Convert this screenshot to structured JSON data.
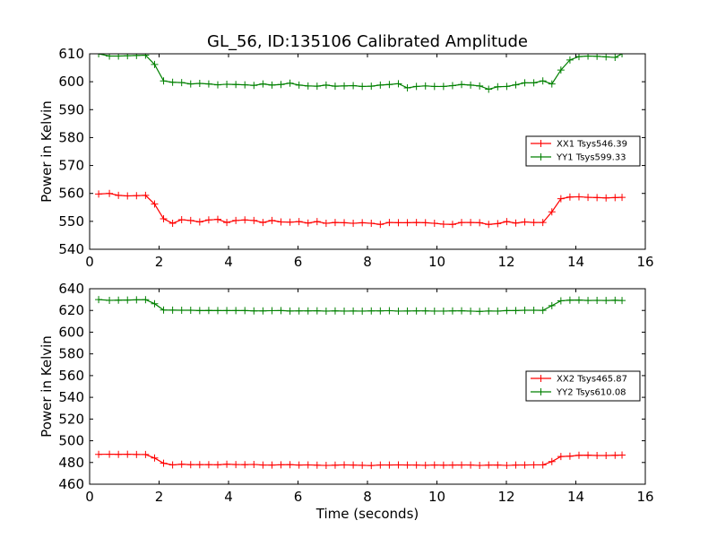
{
  "figure": {
    "title": "GL_56, ID:135106 Calibrated Amplitude",
    "xlabel": "Time (seconds)"
  },
  "chart_data": [
    {
      "type": "line",
      "title": "GL_56, ID:135106 Calibrated Amplitude",
      "xlabel": "",
      "ylabel": "Power in Kelvin",
      "xlim": [
        0,
        16
      ],
      "ylim": [
        540,
        610
      ],
      "xticks": [
        0,
        2,
        4,
        6,
        8,
        10,
        12,
        14,
        16
      ],
      "yticks": [
        540,
        550,
        560,
        570,
        580,
        590,
        600,
        610
      ],
      "grid": false,
      "legend_position": "center-right",
      "x": [
        0.26,
        0.57,
        0.83,
        1.09,
        1.35,
        1.61,
        1.87,
        2.13,
        2.39,
        2.65,
        2.91,
        3.17,
        3.43,
        3.69,
        3.95,
        4.21,
        4.47,
        4.73,
        4.99,
        5.25,
        5.51,
        5.77,
        6.03,
        6.29,
        6.55,
        6.81,
        7.07,
        7.33,
        7.59,
        7.85,
        8.11,
        8.37,
        8.63,
        8.89,
        9.15,
        9.41,
        9.67,
        9.93,
        10.19,
        10.45,
        10.71,
        10.97,
        11.23,
        11.49,
        11.75,
        12.01,
        12.27,
        12.53,
        12.79,
        13.05,
        13.31,
        13.57,
        13.83,
        14.09,
        14.35,
        14.61,
        14.87,
        15.13,
        15.33
      ],
      "series": [
        {
          "name": "XX1 Tsys546.39",
          "color": "#ff0000",
          "values": [
            559.8,
            560.0,
            559.3,
            559.1,
            559.2,
            559.3,
            556.2,
            550.9,
            549.3,
            550.6,
            550.3,
            549.8,
            550.5,
            550.7,
            549.6,
            550.3,
            550.5,
            550.3,
            549.6,
            550.3,
            549.8,
            549.7,
            549.9,
            549.4,
            549.9,
            549.3,
            549.6,
            549.5,
            549.3,
            549.5,
            549.3,
            548.9,
            549.6,
            549.5,
            549.5,
            549.6,
            549.5,
            549.3,
            549.0,
            548.9,
            549.6,
            549.6,
            549.5,
            548.9,
            549.2,
            549.9,
            549.4,
            549.8,
            549.6,
            549.6,
            553.4,
            558.1,
            558.7,
            558.8,
            558.6,
            558.5,
            558.4,
            558.5,
            558.6
          ]
        },
        {
          "name": "YY1 Tsys599.33",
          "color": "#008000",
          "values": [
            610.0,
            609.2,
            609.2,
            609.3,
            609.4,
            609.5,
            606.2,
            600.3,
            599.8,
            599.7,
            599.2,
            599.4,
            599.2,
            598.9,
            599.1,
            599.0,
            598.9,
            598.7,
            599.2,
            598.8,
            599.0,
            599.5,
            598.8,
            598.5,
            598.4,
            598.8,
            598.4,
            598.5,
            598.6,
            598.3,
            598.4,
            598.8,
            599.0,
            599.3,
            597.8,
            598.3,
            598.5,
            598.3,
            598.3,
            598.6,
            599.0,
            598.8,
            598.5,
            597.3,
            598.2,
            598.3,
            598.9,
            599.6,
            599.6,
            600.3,
            599.2,
            604.2,
            607.8,
            609.0,
            609.2,
            609.1,
            608.9,
            608.7,
            610.0
          ]
        }
      ]
    },
    {
      "type": "line",
      "title": "",
      "xlabel": "Time (seconds)",
      "ylabel": "Power in Kelvin",
      "xlim": [
        0,
        16
      ],
      "ylim": [
        460,
        640
      ],
      "xticks": [
        0,
        2,
        4,
        6,
        8,
        10,
        12,
        14,
        16
      ],
      "yticks": [
        460,
        480,
        500,
        520,
        540,
        560,
        580,
        600,
        620,
        640
      ],
      "grid": false,
      "legend_position": "center-right",
      "x": [
        0.26,
        0.57,
        0.83,
        1.09,
        1.35,
        1.61,
        1.87,
        2.13,
        2.39,
        2.65,
        2.91,
        3.17,
        3.43,
        3.69,
        3.95,
        4.21,
        4.47,
        4.73,
        4.99,
        5.25,
        5.51,
        5.77,
        6.03,
        6.29,
        6.55,
        6.81,
        7.07,
        7.33,
        7.59,
        7.85,
        8.11,
        8.37,
        8.63,
        8.89,
        9.15,
        9.41,
        9.67,
        9.93,
        10.19,
        10.45,
        10.71,
        10.97,
        11.23,
        11.49,
        11.75,
        12.01,
        12.27,
        12.53,
        12.79,
        13.05,
        13.31,
        13.57,
        13.83,
        14.09,
        14.35,
        14.61,
        14.87,
        15.13,
        15.33
      ],
      "series": [
        {
          "name": "XX2 Tsys465.87",
          "color": "#ff0000",
          "values": [
            487.5,
            487.6,
            487.5,
            487.6,
            487.4,
            487.3,
            484.1,
            479.3,
            477.8,
            478.4,
            478.0,
            478.0,
            478.0,
            477.9,
            478.4,
            478.1,
            478.0,
            478.2,
            477.7,
            477.6,
            477.9,
            478.0,
            477.6,
            477.8,
            477.5,
            477.3,
            477.5,
            477.8,
            477.6,
            477.4,
            477.2,
            477.7,
            477.7,
            477.8,
            477.7,
            477.6,
            477.4,
            477.7,
            477.5,
            477.6,
            477.7,
            477.7,
            477.3,
            477.6,
            477.7,
            477.3,
            477.6,
            477.7,
            477.8,
            477.8,
            480.8,
            485.5,
            485.8,
            486.6,
            486.7,
            486.4,
            486.4,
            486.6,
            486.8
          ]
        },
        {
          "name": "YY2 Tsys610.08",
          "color": "#008000",
          "values": [
            630.0,
            629.3,
            629.5,
            629.6,
            629.8,
            629.9,
            626.2,
            620.4,
            620.3,
            620.2,
            620.2,
            619.9,
            620.0,
            619.9,
            619.9,
            619.9,
            619.9,
            619.6,
            619.6,
            619.8,
            619.9,
            619.5,
            619.6,
            619.6,
            619.7,
            619.4,
            619.6,
            619.4,
            619.5,
            619.4,
            619.6,
            619.6,
            619.8,
            619.4,
            619.5,
            619.6,
            619.6,
            619.4,
            619.4,
            619.6,
            619.7,
            619.4,
            619.1,
            619.5,
            619.4,
            619.9,
            619.9,
            620.2,
            620.2,
            620.1,
            624.4,
            628.9,
            629.5,
            629.6,
            629.2,
            629.3,
            629.2,
            629.4,
            629.2
          ]
        }
      ]
    }
  ]
}
